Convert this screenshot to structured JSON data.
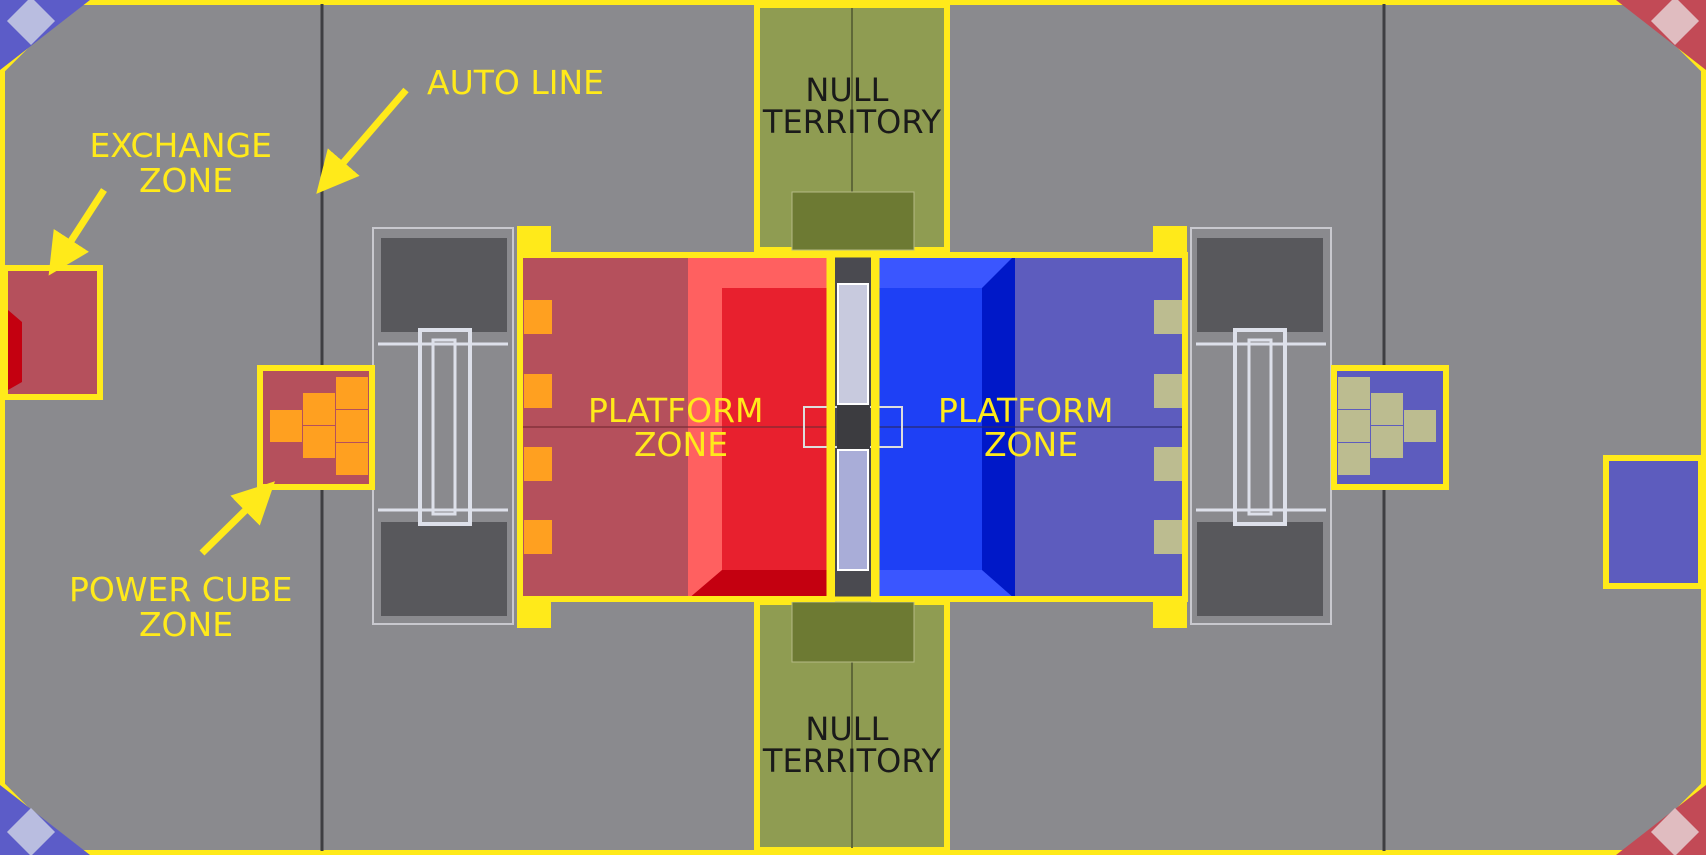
{
  "labels": {
    "auto_line": "AUTO LINE",
    "exchange_zone": [
      "EXCHANGE",
      "ZONE"
    ],
    "power_cube_zone": [
      "POWER CUBE",
      "ZONE"
    ],
    "null_territory": [
      "NULL",
      "TERRITORY"
    ],
    "platform_zone": [
      "PLATFORM",
      "ZONE"
    ]
  },
  "colors": {
    "carpet": "#8a8a8e",
    "zone_outline": "#ffea1a",
    "red_alliance": "#e8202e",
    "red_zone_dim": "#b5505c",
    "blue_alliance": "#1e40f5",
    "blue_zone_dim": "#5d5cbe",
    "null_territory": "#8f9c52",
    "power_cube": "#ffa020"
  }
}
